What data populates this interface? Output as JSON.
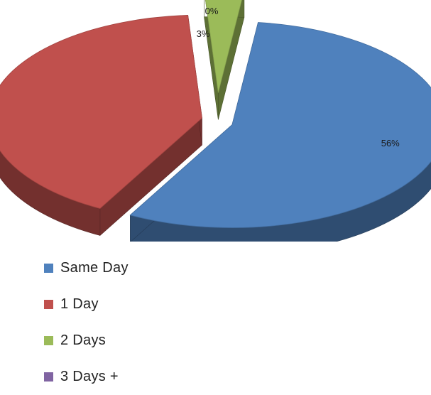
{
  "chart_data": {
    "type": "pie",
    "title": "",
    "slices": [
      {
        "name": "Same Day",
        "value": 56,
        "label": "56%",
        "color": "#4f81bd"
      },
      {
        "name": "1 Day",
        "value": 41,
        "label": "41%",
        "color": "#c0504d"
      },
      {
        "name": "2 Days",
        "value": 3,
        "label": "3%",
        "color": "#9bbb59"
      },
      {
        "name": "3 Days +",
        "value": 0,
        "label": "0%",
        "color": "#8064a2"
      }
    ],
    "legend_placement": "bottom-left",
    "style": "3d-exploded"
  }
}
